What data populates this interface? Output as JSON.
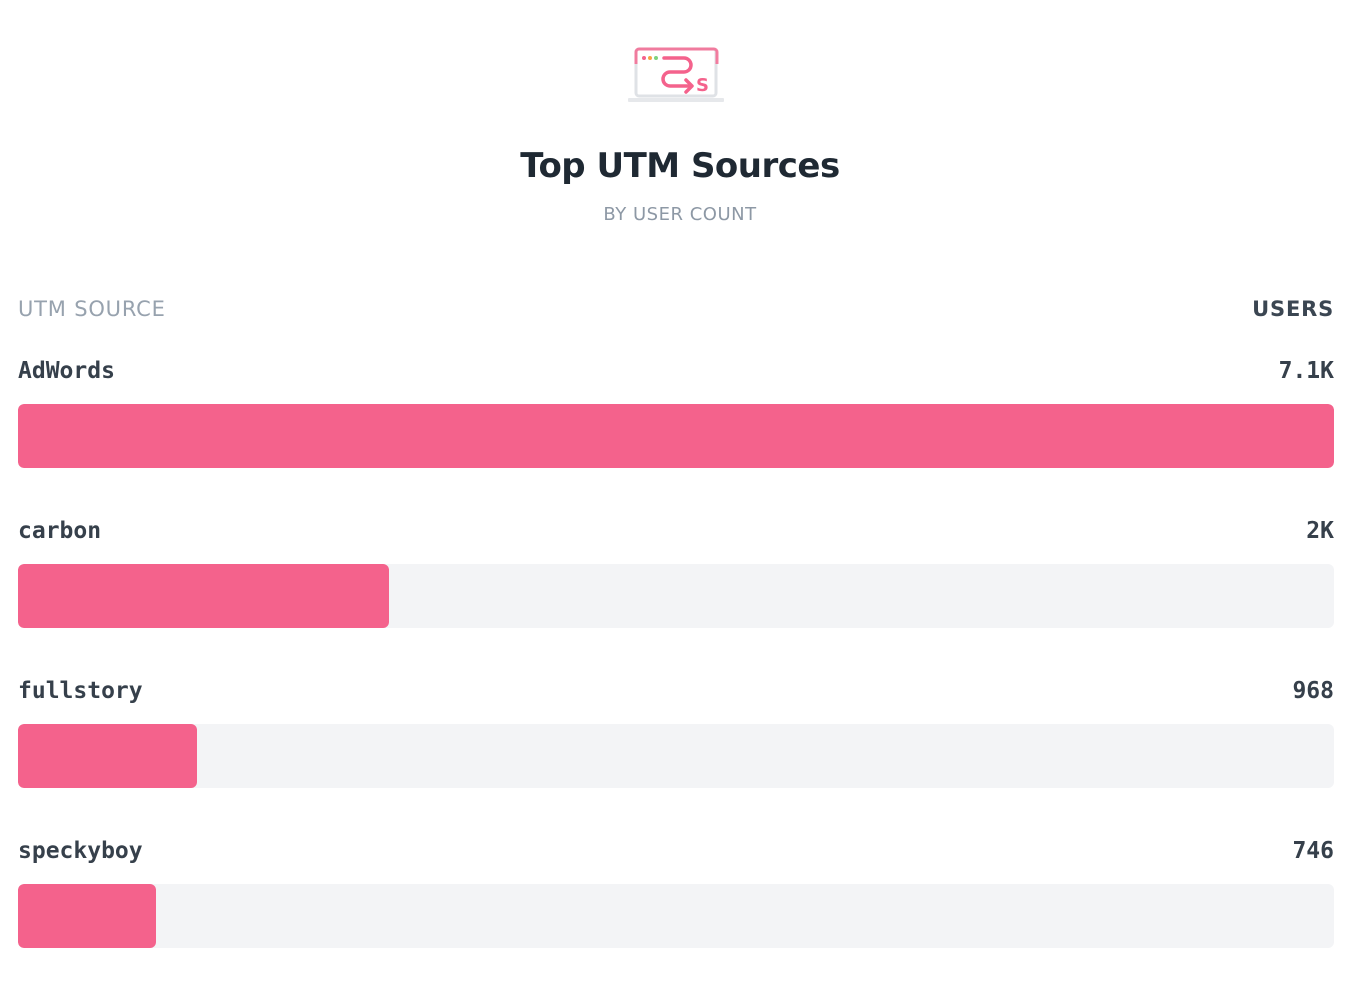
{
  "header": {
    "title": "Top UTM Sources",
    "subtitle": "BY USER COUNT",
    "logo_icon": "browser-swap-icon"
  },
  "table": {
    "column_left": "UTM SOURCE",
    "column_right": "USERS",
    "max_users": 7100,
    "rows": [
      {
        "label": "AdWords",
        "value": "7.1K",
        "users": 7100
      },
      {
        "label": "carbon",
        "value": "2K",
        "users": 2000
      },
      {
        "label": "fullstory",
        "value": "968",
        "users": 968
      },
      {
        "label": "speckyboy",
        "value": "746",
        "users": 746
      }
    ]
  },
  "colors": {
    "bar_fill": "#f4628c",
    "bar_track": "#f3f4f6",
    "accent_green": "#7ed37e",
    "accent_orange": "#f7a444"
  }
}
